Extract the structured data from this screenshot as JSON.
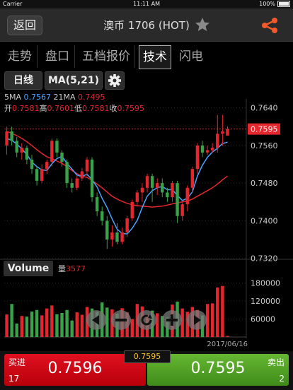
{
  "status_bar": {
    "carrier": "Carrier",
    "time": "11:11 AM",
    "battery": "100%"
  },
  "nav": {
    "back_label": "返回",
    "title": "澳币 1706 (HOT)"
  },
  "tabs": [
    "走势",
    "盘口",
    "五档报价",
    "技术",
    "闪电"
  ],
  "active_tab": "技术",
  "toolbar": {
    "period_label": "日线",
    "ma_label": "MA(5,21)"
  },
  "indicators": {
    "ma5_label": "5MA",
    "ma5_value": "0.7567",
    "ma21_label": "21MA",
    "ma21_value": "0.7495",
    "open_label": "开",
    "open_value": "0.7581",
    "high_label": "高",
    "high_value": "0.7601",
    "low_label": "低",
    "low_value": "0.7581",
    "close_label": "收",
    "close_value": "0.7595"
  },
  "volume_panel": {
    "button_label": "Volume",
    "qty_label": "量",
    "qty_value": "3577",
    "date_label": "2017/06/16"
  },
  "trade": {
    "buy_label": "买进",
    "buy_price": "0.7596",
    "buy_qty": "17",
    "sell_label": "卖出",
    "sell_price": "0.7595",
    "sell_qty": "2",
    "last_price": "0.7595"
  },
  "colors": {
    "up": "#e4262e",
    "down": "#3aa24a",
    "ma5": "#4aa3ff",
    "ma21": "#e4262e",
    "accent": "#f25a2b"
  },
  "chart_data": {
    "type": "candlestick",
    "price_axis": {
      "ticks": [
        "0.7640",
        "0.7560",
        "0.7480",
        "0.7400",
        "0.7320"
      ],
      "range": [
        0.7318,
        0.765
      ],
      "current": "0.7595"
    },
    "volume_axis": {
      "ticks": [
        "180000",
        "120000",
        "60000"
      ],
      "range": [
        0,
        200000
      ]
    },
    "candles": [
      [
        0.756,
        0.759,
        0.754,
        0.76
      ],
      [
        0.759,
        0.757,
        0.756,
        0.76
      ],
      [
        0.757,
        0.7545,
        0.7535,
        0.7578
      ],
      [
        0.7545,
        0.7555,
        0.753,
        0.7565
      ],
      [
        0.7555,
        0.753,
        0.752,
        0.756
      ],
      [
        0.753,
        0.751,
        0.75,
        0.754
      ],
      [
        0.751,
        0.7485,
        0.7475,
        0.7515
      ],
      [
        0.7485,
        0.751,
        0.748,
        0.752
      ],
      [
        0.751,
        0.7525,
        0.75,
        0.753
      ],
      [
        0.7525,
        0.757,
        0.7515,
        0.7575
      ],
      [
        0.757,
        0.7545,
        0.7535,
        0.7575
      ],
      [
        0.7545,
        0.7525,
        0.7515,
        0.755
      ],
      [
        0.7525,
        0.748,
        0.747,
        0.753
      ],
      [
        0.748,
        0.747,
        0.746,
        0.749
      ],
      [
        0.747,
        0.749,
        0.7465,
        0.7495
      ],
      [
        0.749,
        0.7505,
        0.7485,
        0.7512
      ],
      [
        0.7505,
        0.753,
        0.7495,
        0.7535
      ],
      [
        0.753,
        0.745,
        0.744,
        0.7535
      ],
      [
        0.745,
        0.742,
        0.741,
        0.746
      ],
      [
        0.742,
        0.74,
        0.739,
        0.743
      ],
      [
        0.74,
        0.736,
        0.734,
        0.741
      ],
      [
        0.736,
        0.7375,
        0.7345,
        0.739
      ],
      [
        0.7375,
        0.7355,
        0.735,
        0.7395
      ],
      [
        0.7355,
        0.7375,
        0.735,
        0.7385
      ],
      [
        0.7375,
        0.7405,
        0.7365,
        0.741
      ],
      [
        0.7405,
        0.744,
        0.74,
        0.7445
      ],
      [
        0.744,
        0.746,
        0.743,
        0.7465
      ],
      [
        0.746,
        0.747,
        0.744,
        0.748
      ],
      [
        0.747,
        0.7495,
        0.746,
        0.75
      ],
      [
        0.7495,
        0.747,
        0.744,
        0.75
      ],
      [
        0.747,
        0.748,
        0.7455,
        0.749
      ],
      [
        0.748,
        0.746,
        0.745,
        0.749
      ],
      [
        0.746,
        0.745,
        0.744,
        0.747
      ],
      [
        0.745,
        0.748,
        0.744,
        0.7485
      ],
      [
        0.748,
        0.741,
        0.7395,
        0.7485
      ],
      [
        0.741,
        0.7435,
        0.74,
        0.7445
      ],
      [
        0.7435,
        0.747,
        0.742,
        0.7475
      ],
      [
        0.747,
        0.751,
        0.746,
        0.7515
      ],
      [
        0.751,
        0.756,
        0.75,
        0.7565
      ],
      [
        0.756,
        0.7545,
        0.7535,
        0.757
      ],
      [
        0.7545,
        0.755,
        0.754,
        0.756
      ],
      [
        0.755,
        0.7555,
        0.7545,
        0.7565
      ],
      [
        0.7555,
        0.7585,
        0.7545,
        0.7625
      ],
      [
        0.7585,
        0.759,
        0.756,
        0.7625
      ],
      [
        0.7581,
        0.7595,
        0.7581,
        0.7601
      ]
    ],
    "volumes": [
      75000,
      110000,
      45000,
      70000,
      68000,
      85000,
      90000,
      72000,
      95000,
      105000,
      76000,
      80000,
      90000,
      55000,
      82000,
      74000,
      100000,
      95000,
      85000,
      115000,
      98000,
      92000,
      78000,
      96000,
      82000,
      60000,
      110000,
      102000,
      75000,
      88000,
      79000,
      70000,
      65000,
      108000,
      118000,
      95000,
      84000,
      100000,
      90000,
      72000,
      110000,
      112000,
      165000,
      170000,
      3577
    ],
    "ma5": [
      0.7575,
      0.7571,
      0.7563,
      0.7553,
      0.7541,
      0.7525,
      0.7515,
      0.7508,
      0.7507,
      0.7521,
      0.7532,
      0.7537,
      0.7522,
      0.751,
      0.7497,
      0.7494,
      0.7499,
      0.7487,
      0.7472,
      0.7448,
      0.7428,
      0.7404,
      0.7382,
      0.7373,
      0.7372,
      0.7384,
      0.7401,
      0.7428,
      0.7452,
      0.7464,
      0.747,
      0.7473,
      0.7466,
      0.7466,
      0.7454,
      0.7443,
      0.7448,
      0.7461,
      0.7495,
      0.7518,
      0.7535,
      0.7546,
      0.7554,
      0.7564,
      0.7567
    ],
    "ma21": [
      0.759,
      0.7586,
      0.7581,
      0.7575,
      0.7568,
      0.756,
      0.7551,
      0.7543,
      0.7536,
      0.7532,
      0.7527,
      0.7522,
      0.7515,
      0.7507,
      0.75,
      0.7495,
      0.7492,
      0.7486,
      0.7478,
      0.747,
      0.7461,
      0.7452,
      0.7446,
      0.7441,
      0.7437,
      0.7434,
      0.7432,
      0.7431,
      0.743,
      0.7429,
      0.743,
      0.7431,
      0.7433,
      0.7436,
      0.7438,
      0.744,
      0.7442,
      0.7446,
      0.7452,
      0.7458,
      0.7464,
      0.747,
      0.7478,
      0.7487,
      0.7495
    ]
  }
}
